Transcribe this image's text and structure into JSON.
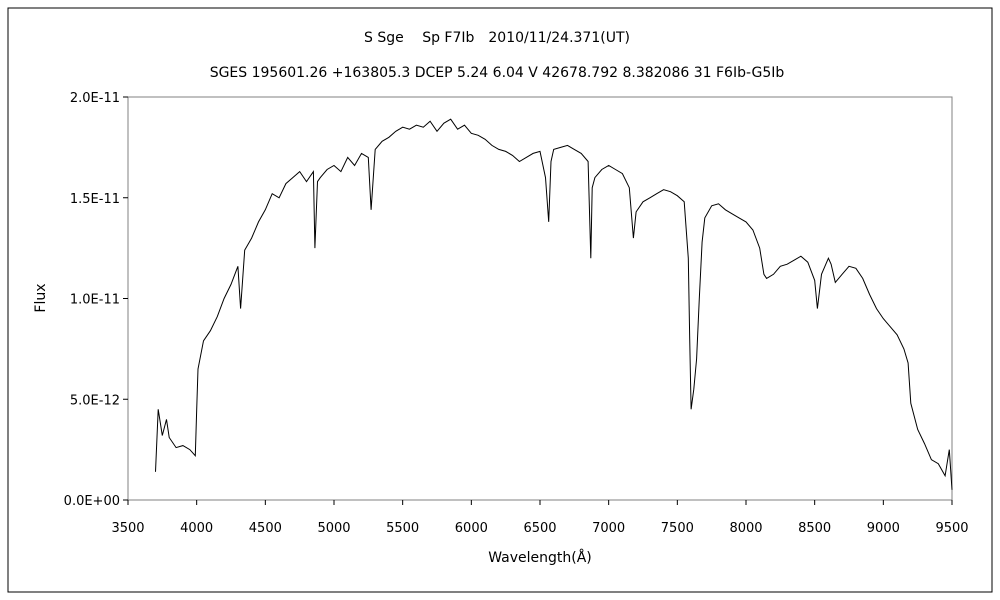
{
  "chart_data": {
    "type": "line",
    "title": "S Sge　 Sp F7Ib　2010/11/24.371(UT)",
    "subtitle": "SGES 195601.26 +163805.3 DCEP 5.24 6.04 V 42678.792 8.382086 31 F6Ib-G5Ib",
    "xlabel": "Wavelength(Å)",
    "ylabel": "Flux",
    "xlim": [
      3500,
      9500
    ],
    "ylim": [
      0,
      2e-11
    ],
    "x_ticks": [
      3500,
      4000,
      4500,
      5000,
      5500,
      6000,
      6500,
      7000,
      7500,
      8000,
      8500,
      9000,
      9500
    ],
    "x_tick_labels": [
      "3500",
      "4000",
      "4500",
      "5000",
      "5500",
      "6000",
      "6500",
      "7000",
      "7500",
      "8000",
      "8500",
      "9000",
      "9500"
    ],
    "y_ticks": [
      0,
      5e-12,
      1e-11,
      1.5e-11,
      2e-11
    ],
    "y_tick_labels": [
      "0.0E+00",
      "5.0E-12",
      "1.0E-11",
      "1.5E-11",
      "2.0E-11"
    ],
    "grid": false,
    "legend": "none",
    "line_color": "#000000",
    "series": [
      {
        "x": [
          3700,
          3720,
          3750,
          3780,
          3800,
          3850,
          3900,
          3950,
          3990,
          4000,
          4010,
          4050,
          4100,
          4150,
          4200,
          4250,
          4300,
          4320,
          4350,
          4400,
          4450,
          4500,
          4550,
          4600,
          4650,
          4700,
          4750,
          4800,
          4850,
          4861,
          4880,
          4900,
          4950,
          5000,
          5050,
          5100,
          5150,
          5200,
          5250,
          5270,
          5300,
          5350,
          5400,
          5450,
          5500,
          5550,
          5600,
          5650,
          5700,
          5750,
          5800,
          5850,
          5900,
          5950,
          6000,
          6050,
          6100,
          6150,
          6200,
          6250,
          6300,
          6350,
          6400,
          6450,
          6500,
          6540,
          6563,
          6580,
          6600,
          6650,
          6700,
          6750,
          6800,
          6850,
          6870,
          6880,
          6900,
          6950,
          7000,
          7050,
          7100,
          7150,
          7180,
          7200,
          7250,
          7300,
          7350,
          7400,
          7450,
          7500,
          7550,
          7580,
          7590,
          7600,
          7620,
          7640,
          7660,
          7680,
          7700,
          7750,
          7800,
          7850,
          7900,
          7950,
          8000,
          8050,
          8100,
          8130,
          8150,
          8200,
          8250,
          8300,
          8350,
          8400,
          8450,
          8500,
          8520,
          8550,
          8600,
          8620,
          8650,
          8700,
          8750,
          8800,
          8850,
          8900,
          8950,
          9000,
          9050,
          9100,
          9150,
          9180,
          9200,
          9250,
          9300,
          9350,
          9400,
          9450,
          9480,
          9500
        ],
        "y": [
          1.4e-12,
          4.5e-12,
          3.2e-12,
          4e-12,
          3.1e-12,
          2.6e-12,
          2.7e-12,
          2.5e-12,
          2.2e-12,
          4.5e-12,
          6.5e-12,
          7.9e-12,
          8.4e-12,
          9.1e-12,
          1e-11,
          1.07e-11,
          1.16e-11,
          9.5e-12,
          1.24e-11,
          1.3e-11,
          1.38e-11,
          1.44e-11,
          1.52e-11,
          1.5e-11,
          1.57e-11,
          1.6e-11,
          1.63e-11,
          1.58e-11,
          1.63e-11,
          1.25e-11,
          1.58e-11,
          1.6e-11,
          1.64e-11,
          1.66e-11,
          1.63e-11,
          1.7e-11,
          1.66e-11,
          1.72e-11,
          1.7e-11,
          1.44e-11,
          1.74e-11,
          1.78e-11,
          1.8e-11,
          1.83e-11,
          1.85e-11,
          1.84e-11,
          1.86e-11,
          1.85e-11,
          1.88e-11,
          1.83e-11,
          1.87e-11,
          1.89e-11,
          1.84e-11,
          1.86e-11,
          1.82e-11,
          1.81e-11,
          1.79e-11,
          1.76e-11,
          1.74e-11,
          1.73e-11,
          1.71e-11,
          1.68e-11,
          1.7e-11,
          1.72e-11,
          1.73e-11,
          1.6e-11,
          1.38e-11,
          1.68e-11,
          1.74e-11,
          1.75e-11,
          1.76e-11,
          1.74e-11,
          1.72e-11,
          1.68e-11,
          1.2e-11,
          1.55e-11,
          1.6e-11,
          1.64e-11,
          1.66e-11,
          1.64e-11,
          1.62e-11,
          1.55e-11,
          1.3e-11,
          1.43e-11,
          1.48e-11,
          1.5e-11,
          1.52e-11,
          1.54e-11,
          1.53e-11,
          1.51e-11,
          1.48e-11,
          1.2e-11,
          8e-12,
          4.5e-12,
          5.5e-12,
          7e-12,
          1e-11,
          1.28e-11,
          1.4e-11,
          1.46e-11,
          1.47e-11,
          1.44e-11,
          1.42e-11,
          1.4e-11,
          1.38e-11,
          1.34e-11,
          1.25e-11,
          1.12e-11,
          1.1e-11,
          1.12e-11,
          1.16e-11,
          1.17e-11,
          1.19e-11,
          1.21e-11,
          1.18e-11,
          1.09e-11,
          9.5e-12,
          1.12e-11,
          1.2e-11,
          1.17e-11,
          1.08e-11,
          1.12e-11,
          1.16e-11,
          1.15e-11,
          1.1e-11,
          1.02e-11,
          9.5e-12,
          9e-12,
          8.6e-12,
          8.2e-12,
          7.5e-12,
          6.8e-12,
          4.8e-12,
          3.5e-12,
          2.8e-12,
          2e-12,
          1.8e-12,
          1.2e-12,
          2.5e-12,
          5e-13
        ]
      }
    ]
  }
}
